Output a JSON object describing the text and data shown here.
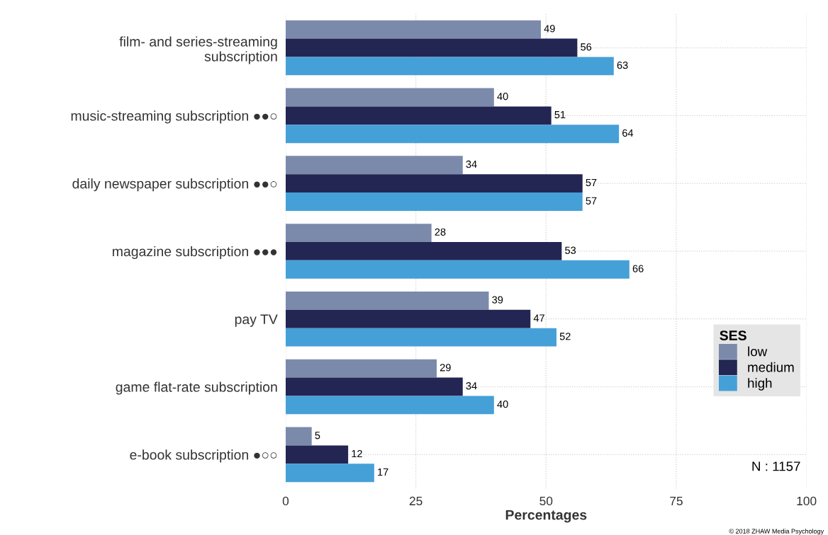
{
  "chart_data": {
    "type": "bar",
    "orientation": "horizontal",
    "xlabel": "Percentages",
    "categories": [
      "film- and series-streaming\nsubscription",
      "music-streaming subscription ●●○",
      "daily newspaper subscription ●●○",
      "magazine subscription ●●●",
      "pay TV",
      "game flat-rate subscription",
      "e-book subscription ●○○"
    ],
    "series": [
      {
        "name": "low",
        "color": "#7b8aab",
        "values": [
          49,
          40,
          34,
          28,
          39,
          29,
          5
        ]
      },
      {
        "name": "medium",
        "color": "#232552",
        "values": [
          56,
          51,
          57,
          53,
          47,
          34,
          12
        ]
      },
      {
        "name": "high",
        "color": "#46a0d8",
        "values": [
          63,
          64,
          57,
          66,
          52,
          40,
          17
        ]
      }
    ],
    "xlim": [
      0,
      100
    ],
    "xticks": [
      0,
      25,
      50,
      75,
      100
    ],
    "grid": true,
    "legend": "right",
    "legend_title": "SES",
    "data_labels": true,
    "annotations": [
      "N : 1157",
      "© 2018 ZHAW Media Psychology"
    ]
  }
}
